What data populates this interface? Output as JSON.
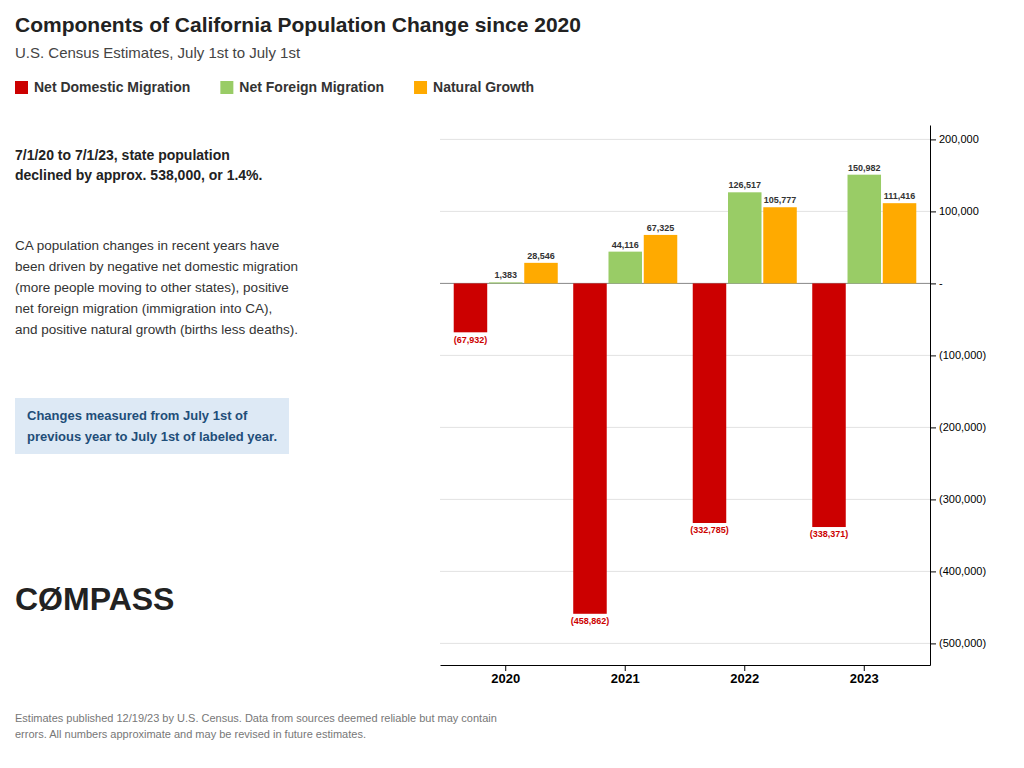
{
  "chart_data": {
    "type": "bar",
    "title": "Components of California Population Change since 2020",
    "subtitle": "U.S. Census Estimates, July 1st to July 1st",
    "annotations": [
      "7/1/20 to 7/1/23, state population\ndeclined by approx. 538,000, or 1.4%.",
      "CA population changes in recent years have\nbeen driven by negative net domestic migration\n(more people moving to other states), positive\nnet foreign migration (immigration into CA),\nand positive natural growth (births less deaths).",
      "Changes measured from July 1st of\nprevious year to July 1st of labeled year.",
      "Estimates published 12/19/23 by U.S. Census. Data from sources deemed reliable but may contain\nerrors. All numbers approximate and may be revised in future estimates.",
      "CØMPASS"
    ],
    "categories": [
      "2020",
      "2021",
      "2022",
      "2023"
    ],
    "series": [
      {
        "name": "Net Domestic Migration",
        "color": "#cc0000",
        "values": [
          -67932,
          -458862,
          -332785,
          -338371
        ],
        "value_labels": [
          "(67,932)",
          "(458,862)",
          "(332,785)",
          "(338,371)"
        ]
      },
      {
        "name": "Net Foreign Migration",
        "color": "#99cc66",
        "values": [
          1383,
          44116,
          126517,
          150982
        ],
        "value_labels": [
          "1,383",
          "44,116",
          "126,517",
          "150,982"
        ]
      },
      {
        "name": "Natural Growth",
        "color": "#ffaa00",
        "values": [
          28546,
          67325,
          105777,
          111416
        ],
        "value_labels": [
          "28,546",
          "67,325",
          "105,777",
          "111,416"
        ]
      }
    ],
    "ylim": [
      -530000,
      220000
    ],
    "yticks": [
      {
        "value": 200000,
        "label": "200,000"
      },
      {
        "value": 100000,
        "label": "100,000"
      },
      {
        "value": 0,
        "label": "-"
      },
      {
        "value": -100000,
        "label": "(100,000)"
      },
      {
        "value": -200000,
        "label": "(200,000)"
      },
      {
        "value": -300000,
        "label": "(300,000)"
      },
      {
        "value": -400000,
        "label": "(400,000)"
      },
      {
        "value": -500000,
        "label": "(500,000)"
      }
    ],
    "grid": true,
    "legend": "top",
    "data_labels": true
  }
}
